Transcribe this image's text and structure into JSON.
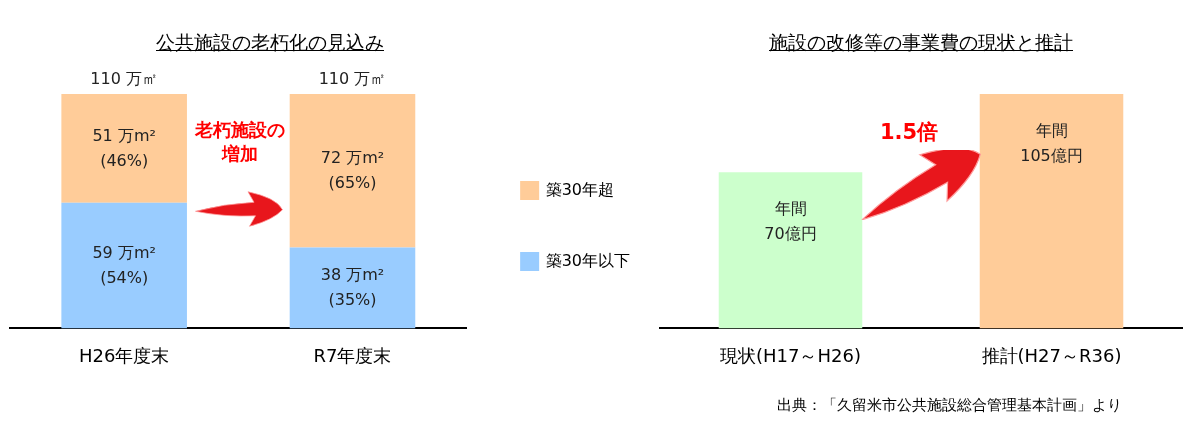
{
  "chart_data": [
    {
      "type": "bar",
      "title": "公共施設の老朽化の見込み",
      "categories": [
        "H26年度末",
        "R7年度末"
      ],
      "stacked": true,
      "legend": "right",
      "grid": false,
      "series": [
        {
          "name": "築30年以下",
          "color": "#99ccff",
          "values": [
            59,
            38
          ],
          "value_labels": [
            "59 万m²\n(54%)",
            "38 万m²\n(35%)"
          ]
        },
        {
          "name": "築30年超",
          "color": "#ffcc99",
          "values": [
            51,
            72
          ],
          "value_labels": [
            "51 万m²\n(46%)",
            "72 万m²\n(65%)"
          ]
        }
      ],
      "totals": [
        "110 万㎡",
        "110 万㎡"
      ],
      "annotations": [
        "老朽施設の増加"
      ]
    },
    {
      "type": "bar",
      "title": "施設の改修等の事業費の現状と推計",
      "categories": [
        "現状(H17～H26)",
        "推計(H27～R36)"
      ],
      "values": [
        70,
        105
      ],
      "colors": [
        "#ccffcc",
        "#ffcc99"
      ],
      "value_labels": [
        "年間\n70億円",
        "年間\n105億円"
      ],
      "legend": false,
      "grid": false,
      "annotations": [
        "1.5倍",
        "出典：「久留米市公共施設総合管理基本計画」より"
      ]
    }
  ]
}
